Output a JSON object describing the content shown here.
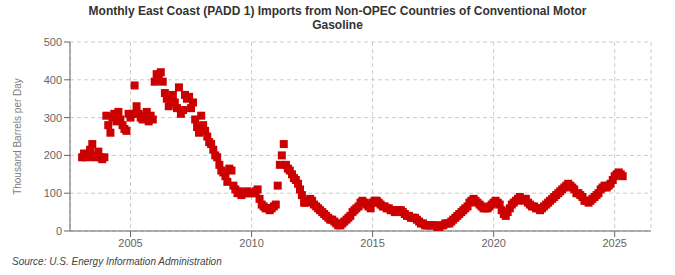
{
  "chart_data": {
    "type": "scatter",
    "title": "Monthly East Coast (PADD 1) Imports from Non-OPEC Countries of Conventional Motor\nGasoline",
    "ylabel": "Thousand Barrels per Day",
    "annotations": [
      "Source: U.S. Energy Information Administration"
    ],
    "color": "#cc0000",
    "marker": "square",
    "grid": true,
    "xlim": [
      2002.5,
      2026.5
    ],
    "xticks": [
      2005,
      2010,
      2015,
      2020,
      2025
    ],
    "ylim": [
      0,
      500
    ],
    "yticks": [
      0,
      100,
      200,
      300,
      400,
      500
    ],
    "x": [
      2003.0,
      2003.08,
      2003.17,
      2003.25,
      2003.33,
      2003.42,
      2003.5,
      2003.58,
      2003.67,
      2003.75,
      2003.83,
      2003.92,
      2004.0,
      2004.08,
      2004.17,
      2004.25,
      2004.33,
      2004.42,
      2004.5,
      2004.58,
      2004.67,
      2004.75,
      2004.83,
      2004.92,
      2005.0,
      2005.08,
      2005.17,
      2005.25,
      2005.33,
      2005.42,
      2005.5,
      2005.58,
      2005.67,
      2005.75,
      2005.83,
      2005.92,
      2006.0,
      2006.08,
      2006.17,
      2006.25,
      2006.33,
      2006.42,
      2006.5,
      2006.58,
      2006.67,
      2006.75,
      2006.83,
      2006.92,
      2007.0,
      2007.08,
      2007.17,
      2007.25,
      2007.33,
      2007.42,
      2007.5,
      2007.58,
      2007.67,
      2007.75,
      2007.83,
      2007.92,
      2008.0,
      2008.08,
      2008.17,
      2008.25,
      2008.33,
      2008.42,
      2008.5,
      2008.58,
      2008.67,
      2008.75,
      2008.83,
      2008.92,
      2009.0,
      2009.08,
      2009.17,
      2009.25,
      2009.33,
      2009.42,
      2009.5,
      2009.58,
      2009.67,
      2009.75,
      2009.83,
      2009.92,
      2010.0,
      2010.08,
      2010.17,
      2010.25,
      2010.33,
      2010.42,
      2010.5,
      2010.58,
      2010.67,
      2010.75,
      2010.83,
      2010.92,
      2011.0,
      2011.08,
      2011.17,
      2011.25,
      2011.33,
      2011.42,
      2011.5,
      2011.58,
      2011.67,
      2011.75,
      2011.83,
      2011.92,
      2012.0,
      2012.08,
      2012.17,
      2012.25,
      2012.33,
      2012.42,
      2012.5,
      2012.58,
      2012.67,
      2012.75,
      2012.83,
      2012.92,
      2013.0,
      2013.08,
      2013.17,
      2013.25,
      2013.33,
      2013.42,
      2013.5,
      2013.58,
      2013.67,
      2013.75,
      2013.83,
      2013.92,
      2014.0,
      2014.08,
      2014.17,
      2014.25,
      2014.33,
      2014.42,
      2014.5,
      2014.58,
      2014.67,
      2014.75,
      2014.83,
      2014.92,
      2015.0,
      2015.08,
      2015.17,
      2015.25,
      2015.33,
      2015.42,
      2015.5,
      2015.58,
      2015.67,
      2015.75,
      2015.83,
      2015.92,
      2016.0,
      2016.08,
      2016.17,
      2016.25,
      2016.33,
      2016.42,
      2016.5,
      2016.58,
      2016.67,
      2016.75,
      2016.83,
      2016.92,
      2017.0,
      2017.08,
      2017.17,
      2017.25,
      2017.33,
      2017.42,
      2017.5,
      2017.58,
      2017.67,
      2017.75,
      2017.83,
      2017.92,
      2018.0,
      2018.08,
      2018.17,
      2018.25,
      2018.33,
      2018.42,
      2018.5,
      2018.58,
      2018.67,
      2018.75,
      2018.83,
      2018.92,
      2019.0,
      2019.08,
      2019.17,
      2019.25,
      2019.33,
      2019.42,
      2019.5,
      2019.58,
      2019.67,
      2019.75,
      2019.83,
      2019.92,
      2020.0,
      2020.08,
      2020.17,
      2020.25,
      2020.33,
      2020.42,
      2020.5,
      2020.58,
      2020.67,
      2020.75,
      2020.83,
      2020.92,
      2021.0,
      2021.08,
      2021.17,
      2021.25,
      2021.33,
      2021.42,
      2021.5,
      2021.58,
      2021.67,
      2021.75,
      2021.83,
      2021.92,
      2022.0,
      2022.08,
      2022.17,
      2022.25,
      2022.33,
      2022.42,
      2022.5,
      2022.58,
      2022.67,
      2022.75,
      2022.83,
      2022.92,
      2023.0,
      2023.08,
      2023.17,
      2023.25,
      2023.33,
      2023.42,
      2023.5,
      2023.58,
      2023.67,
      2023.75,
      2023.83,
      2023.92,
      2024.0,
      2024.08,
      2024.17,
      2024.25,
      2024.33,
      2024.42,
      2024.5,
      2024.58,
      2024.67,
      2024.75,
      2024.83,
      2024.92,
      2025.0,
      2025.08,
      2025.17,
      2025.25,
      2025.33
    ],
    "values": [
      195,
      205,
      195,
      200,
      215,
      230,
      195,
      200,
      210,
      195,
      190,
      195,
      305,
      280,
      260,
      300,
      310,
      290,
      315,
      295,
      280,
      270,
      265,
      310,
      300,
      310,
      385,
      330,
      310,
      300,
      295,
      305,
      315,
      290,
      305,
      295,
      395,
      415,
      400,
      420,
      395,
      365,
      350,
      330,
      345,
      360,
      340,
      325,
      380,
      310,
      320,
      360,
      350,
      355,
      325,
      340,
      295,
      275,
      260,
      305,
      280,
      265,
      250,
      235,
      230,
      215,
      200,
      195,
      175,
      160,
      155,
      145,
      130,
      165,
      160,
      120,
      110,
      100,
      105,
      95,
      100,
      100,
      105,
      100,
      100,
      100,
      105,
      110,
      85,
      70,
      65,
      60,
      60,
      55,
      60,
      65,
      70,
      120,
      175,
      200,
      230,
      175,
      165,
      160,
      150,
      140,
      135,
      125,
      110,
      95,
      75,
      75,
      80,
      85,
      80,
      70,
      65,
      60,
      55,
      50,
      45,
      40,
      35,
      30,
      30,
      25,
      20,
      15,
      15,
      20,
      25,
      30,
      35,
      40,
      50,
      55,
      60,
      65,
      75,
      80,
      75,
      70,
      65,
      60,
      75,
      80,
      80,
      75,
      70,
      65,
      65,
      60,
      60,
      55,
      55,
      50,
      55,
      55,
      55,
      50,
      45,
      40,
      40,
      35,
      35,
      35,
      30,
      25,
      20,
      20,
      15,
      15,
      15,
      15,
      15,
      15,
      10,
      10,
      15,
      15,
      20,
      20,
      20,
      25,
      30,
      35,
      40,
      45,
      50,
      55,
      60,
      65,
      75,
      80,
      85,
      80,
      75,
      70,
      65,
      60,
      60,
      60,
      65,
      70,
      75,
      80,
      75,
      70,
      55,
      45,
      40,
      50,
      60,
      70,
      75,
      80,
      85,
      90,
      85,
      80,
      85,
      75,
      70,
      65,
      65,
      60,
      60,
      55,
      60,
      65,
      70,
      75,
      80,
      85,
      90,
      95,
      100,
      105,
      110,
      115,
      120,
      125,
      120,
      115,
      110,
      100,
      100,
      95,
      90,
      80,
      80,
      75,
      80,
      85,
      90,
      95,
      100,
      110,
      115,
      120,
      115,
      120,
      125,
      135,
      145,
      150,
      155,
      150,
      145
    ]
  }
}
